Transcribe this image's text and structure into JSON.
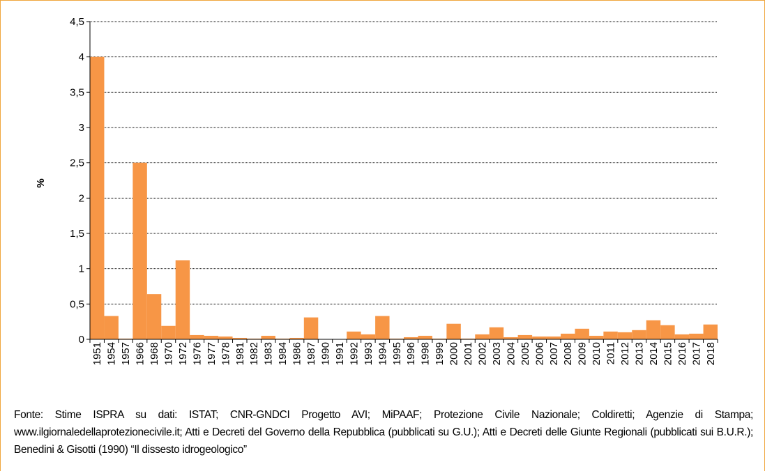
{
  "chart_data": {
    "type": "bar",
    "y_label": "%",
    "categories": [
      "1951",
      "1954",
      "1957",
      "1966",
      "1968",
      "1970",
      "1972",
      "1976",
      "1977",
      "1978",
      "1981",
      "1982",
      "1983",
      "1984",
      "1986",
      "1987",
      "1990",
      "1991",
      "1992",
      "1993",
      "1994",
      "1995",
      "1996",
      "1998",
      "1999",
      "2000",
      "2001",
      "2002",
      "2003",
      "2004",
      "2005",
      "2006",
      "2007",
      "2008",
      "2009",
      "2010",
      "2011",
      "2012",
      "2013",
      "2014",
      "2015",
      "2016",
      "2017",
      "2018"
    ],
    "values": [
      4.0,
      0.33,
      0.01,
      2.5,
      0.64,
      0.19,
      1.12,
      0.06,
      0.05,
      0.04,
      0.02,
      0.01,
      0.05,
      0.01,
      0.02,
      0.31,
      0,
      0,
      0.11,
      0.07,
      0.33,
      0.01,
      0.03,
      0.05,
      0.01,
      0.22,
      0.01,
      0.07,
      0.17,
      0.03,
      0.06,
      0.04,
      0.04,
      0.08,
      0.15,
      0.05,
      0.11,
      0.1,
      0.13,
      0.27,
      0.2,
      0.07,
      0.08,
      0.21
    ],
    "color": "#f79646",
    "ylim": [
      0,
      4.5
    ],
    "yticks": [
      0,
      {
        "value": 0.5,
        "label": "0,5"
      },
      1,
      {
        "value": 1.5,
        "label": "1,5"
      },
      2,
      {
        "value": 2.5,
        "label": "2,5"
      },
      3,
      {
        "value": 3.5,
        "label": "3,5"
      },
      4,
      {
        "value": 4.5,
        "label": "4,5"
      }
    ],
    "grid": true,
    "source": "Fonte: Stime ISPRA su dati: ISTAT; CNR-GNDCI Progetto AVI; MiPAAF; Protezione Civile Nazionale; Coldiretti; Agenzie di Stampa; www.ilgiornaledellaprotezionecivile.it; Atti e Decreti del Governo della Repubblica (pubblicati su G.U.); Atti e Decreti delle Giunte Regionali (pubblicati sui B.U.R.); Benedini & Gisotti (1990) “Il dissesto idrogeologico”"
  }
}
